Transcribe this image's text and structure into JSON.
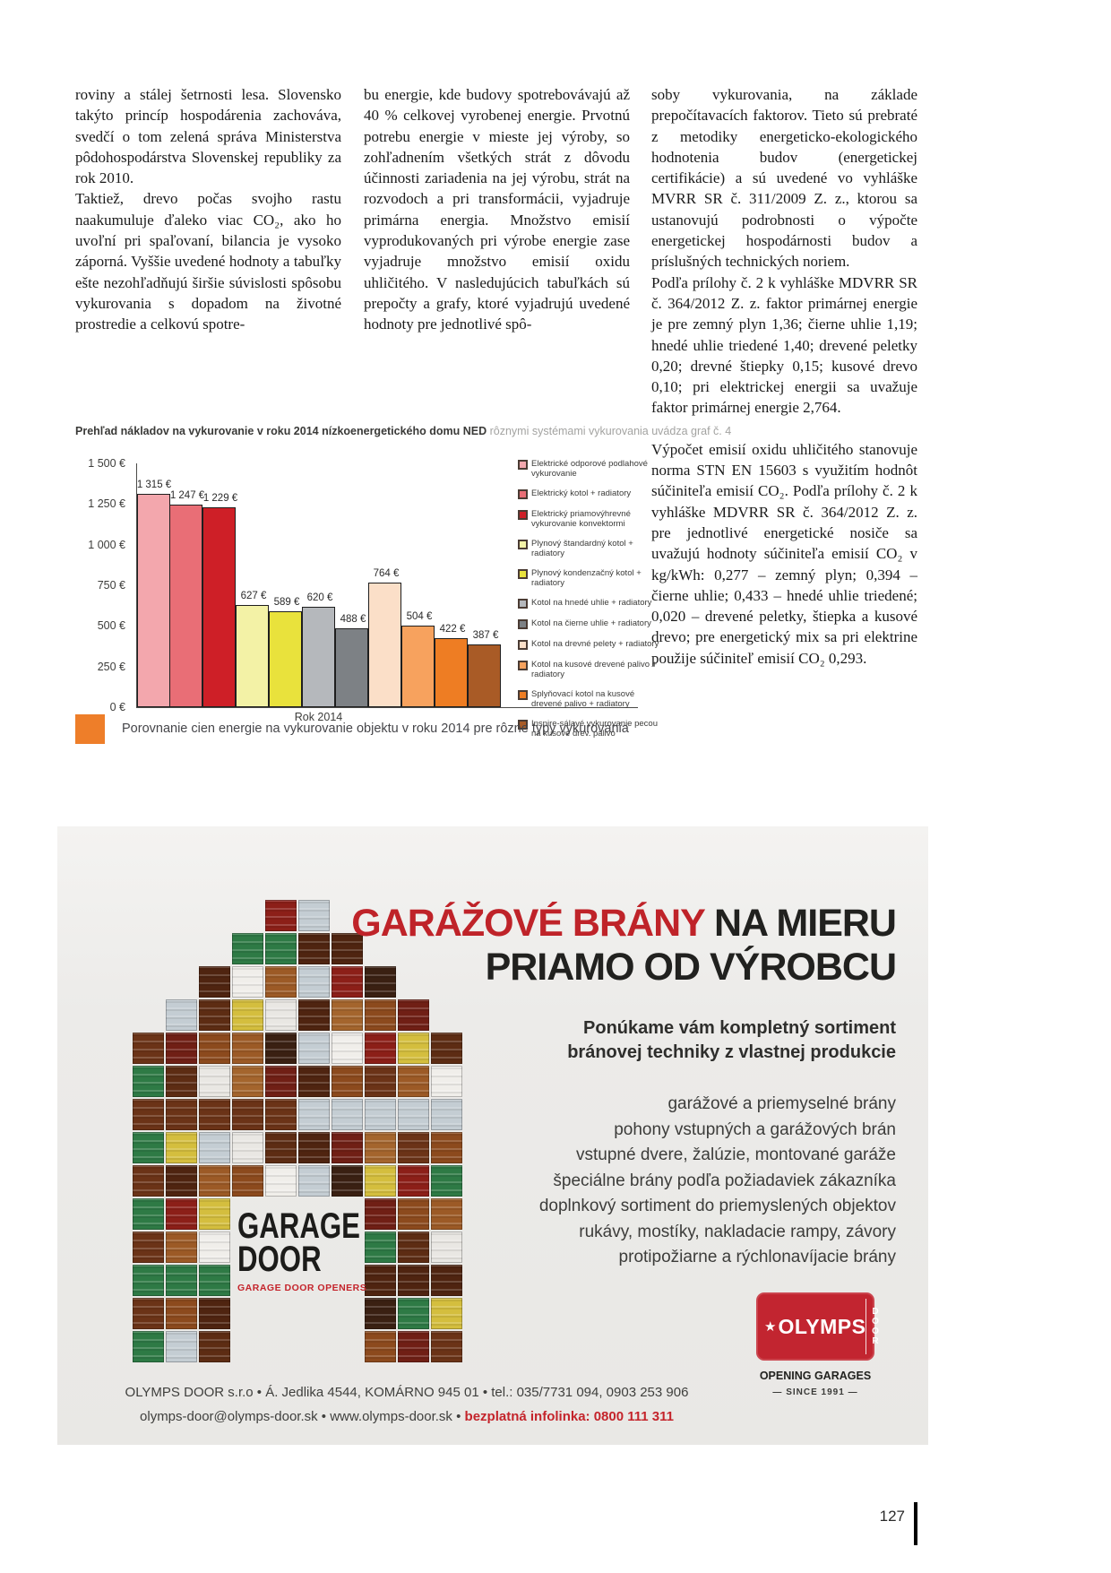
{
  "page": {
    "number": "127"
  },
  "article": {
    "col1_p1": "roviny a stálej šetrnosti lesa. Slovensko takýto princíp hospodárenia zachováva, svedčí o tom zelená správa Ministerstva pôdohospodárstva Slovenskej republiky za rok 2010.",
    "col1_p2": "Taktiež, drevo počas svojho rastu naakumuluje ďaleko viac CO₂, ako ho uvoľní pri spaľovaní, bilancia je vysoko záporná. Vyššie uvedené hodnoty a tabuľky ešte nezohľadňujú širšie súvislosti spôsobu vykurovania s dopadom na životné prostredie a celkovú spotre-",
    "col2_p1": "bu energie, kde budovy spotrebovávajú až 40 % celkovej vyrobenej energie. Prvotnú potrebu energie v mieste jej výroby, so zohľadnením všetkých strát z dôvodu účinnosti zariadenia na jej výrobu, strát na rozvodoch a pri transformácii, vyjadruje primárna energia. Množstvo emisií vyprodukovaných pri výrobe energie zase vyjadruje množstvo emisií oxidu uhličitého. V nasledujúcich tabuľkách sú prepočty a grafy, ktoré vyjadrujú uvedené hodnoty pre jednotlivé spô-",
    "col3_p1": "soby vykurovania, na základe prepočítavacích faktorov. Tieto sú prebraté z metodiky energeticko-ekologického hodnotenia budov (energetickej certifikácie) a sú uvedené vo vyhláške MVRR SR č. 311/2009 Z. z., ktorou sa ustanovujú podrobnosti o výpočte energetickej hospodárnosti budov a príslušných technických noriem.",
    "col3_p2": "Podľa prílohy č. 2 k vyhláške MDVRR SR č. 364/2012 Z. z. faktor primárnej energie je pre zemný plyn 1,36; čierne uhlie 1,19; hnedé uhlie triedené 1,40; drevené peletky 0,20; drevné štiepky 0,15; kusové drevo 0,10; pri elektrickej energii sa uvažuje faktor primárnej energie 2,764.",
    "col3_p3": "Výpočet emisií oxidu uhličitého stanovuje norma STN EN 15603 s využitím hodnôt súčiniteľa emisií CO₂. Podľa prílohy č. 2 k vyhláške MDVRR SR č. 364/2012 Z. z. pre jednotlivé energetické nosiče sa uvažujú hodnoty súčiniteľa emisií CO₂ v kg/kWh: 0,277 – zemný plyn; 0,394 – čierne uhlie; 0,433 – hnedé uhlie triedené; 0,020 – drevené peletky, štiepka a kusové drevo; pre energetický mix sa pri elektrine použije súčiniteľ emisií CO₂ 0,293."
  },
  "chart_caption": {
    "bold": "Prehľad nákladov na vykurovanie v roku 2014 nízkoenergetického domu NED",
    "light": " rôznymi systémami vykurovania uvádza graf č. 4"
  },
  "chart_data": {
    "type": "bar",
    "title": "Prehľad nákladov na vykurovanie v roku 2014 nízkoenergetického domu NED rôznymi systémami vykurovania uvádza graf č. 4",
    "xlabel": "Rok 2014",
    "ylabel": "",
    "ylim": [
      0,
      1500
    ],
    "ytick_labels": [
      "1 500 €",
      "1 250 €",
      "1 000 €",
      "750 €",
      "500 €",
      "250 €",
      "0 €"
    ],
    "grid": false,
    "legend_position": "right",
    "categories": [
      "Elektrické odporové podlahové vykurovanie",
      "Elektrický kotol + radiatory",
      "Elektrický priamovýhrevné vykurovanie konvektormi",
      "Plynový štandardný kotol + radiatory",
      "Plynový kondenzačný kotol + radiatory",
      "Kotol na hnedé uhlie + radiatory",
      "Kotol na čierne uhlie + radiatory",
      "Kotol na drevné pelety + radiatory",
      "Kotol na kusové drevené palivo + radiatory",
      "Splyňovací kotol na kusové drevené palivo + radiatory",
      "Inspire-sálavé vykurovanie pecou na kusové drev. palivo"
    ],
    "values": [
      1315,
      1247,
      1229,
      627,
      589,
      620,
      488,
      764,
      504,
      422,
      387
    ],
    "value_labels": [
      "1 315 €",
      "1 247 €",
      "1 229 €",
      "627 €",
      "589 €",
      "620 €",
      "488 €",
      "764 €",
      "504 €",
      "422 €",
      "387 €"
    ],
    "colors": [
      "#F3A7AD",
      "#E96E76",
      "#CE1F27",
      "#F3F2A6",
      "#E9E23C",
      "#B5B8BC",
      "#7D8185",
      "#FBDFC8",
      "#F7A25E",
      "#EE7D23",
      "#A95B26"
    ]
  },
  "chart_footer": {
    "caption": "Porovnanie cien energie na vykurovanie objektu v roku 2014 pre rôzne typy vykurovania",
    "square_color": "#EE7E29"
  },
  "ad": {
    "headline_red": "GARÁŽOVÉ BRÁNY",
    "headline_black": " NA MIERU",
    "headline_line2": "PRIAMO OD VÝROBCU",
    "subhead_line1": "Ponúkame vám kompletný sortiment",
    "subhead_line2": "bránovej techniky z vlastnej produkcie",
    "list": [
      "garážové a priemyselné brány",
      "pohony vstupných a garážových brán",
      "vstupné dvere, žalúzie, montované garáže",
      "špeciálne brány podľa požiadaviek zákazníka",
      "doplnkový sortiment do priemyslených objektov",
      "rukávy, mostíky, nakladacie rampy, závory",
      "protipožiarne a rýchlonavíjacie brány"
    ],
    "logo": {
      "line1": "GARAGE",
      "line2": "DOOR",
      "tagline": "GARAGE DOOR OPENERS"
    },
    "badge": {
      "star": "★",
      "name": "OLYMPS",
      "vertical": "DOOR",
      "caption": "OPENING GARAGES",
      "since": "— SINCE 1991 —"
    },
    "contact_line1": "OLYMPS DOOR s.r.o • Á. Jedlika 4544, KOMÁRNO 945 01 • tel.: 035/7731 094, 0903 253 906",
    "contact_line2_plain": "olymps-door@olymps-door.sk • www.olymps-door.sk • ",
    "contact_line2_red": "bezplatná infolinka: 0800 111 311",
    "mosaic_palette": [
      "#6b3317",
      "#8c4a1d",
      "#4f2410",
      "#701f15",
      "#a4652d",
      "#e9e7e3",
      "#5d2c13",
      "#2e7a45",
      "#d4be3e",
      "#c4cdd3",
      "#8c1f18",
      "#3a2012",
      "#f0eeea",
      "#9c5a26"
    ],
    "mosaic_rows": [
      "....11....",
      "...1111...",
      "..111111..",
      ".11111111.",
      "1111111111",
      "1111111111",
      "1111111111",
      "1111111111",
      "1111111111",
      "111....111",
      "111....111",
      "111....111",
      "111....111",
      "111....111"
    ]
  }
}
